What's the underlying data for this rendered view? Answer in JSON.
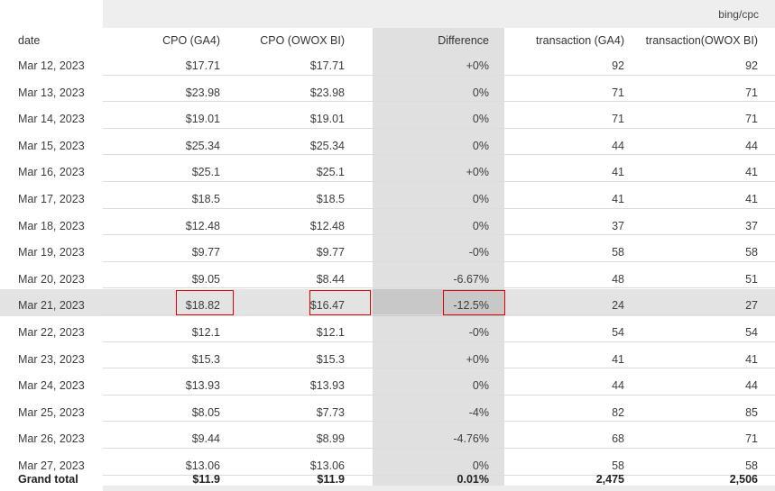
{
  "group_label": "bing/cpc",
  "columns": {
    "date": "date",
    "cpo_ga4": "CPO (GA4)",
    "cpo_owox": "CPO (OWOX BI)",
    "difference": "Difference",
    "trans_ga4": "transaction (GA4)",
    "trans_owox": "transaction(OWOX BI)"
  },
  "rows": [
    {
      "date": "Mar 12, 2023",
      "cpo_ga4": "$17.71",
      "cpo_owox": "$17.71",
      "difference": "+0%",
      "trans_ga4": "92",
      "trans_owox": "92"
    },
    {
      "date": "Mar 13, 2023",
      "cpo_ga4": "$23.98",
      "cpo_owox": "$23.98",
      "difference": "0%",
      "trans_ga4": "71",
      "trans_owox": "71"
    },
    {
      "date": "Mar 14, 2023",
      "cpo_ga4": "$19.01",
      "cpo_owox": "$19.01",
      "difference": "0%",
      "trans_ga4": "71",
      "trans_owox": "71"
    },
    {
      "date": "Mar 15, 2023",
      "cpo_ga4": "$25.34",
      "cpo_owox": "$25.34",
      "difference": "0%",
      "trans_ga4": "44",
      "trans_owox": "44"
    },
    {
      "date": "Mar 16, 2023",
      "cpo_ga4": "$25.1",
      "cpo_owox": "$25.1",
      "difference": "+0%",
      "trans_ga4": "41",
      "trans_owox": "41"
    },
    {
      "date": "Mar 17, 2023",
      "cpo_ga4": "$18.5",
      "cpo_owox": "$18.5",
      "difference": "0%",
      "trans_ga4": "41",
      "trans_owox": "41"
    },
    {
      "date": "Mar 18, 2023",
      "cpo_ga4": "$12.48",
      "cpo_owox": "$12.48",
      "difference": "0%",
      "trans_ga4": "37",
      "trans_owox": "37"
    },
    {
      "date": "Mar 19, 2023",
      "cpo_ga4": "$9.77",
      "cpo_owox": "$9.77",
      "difference": "-0%",
      "trans_ga4": "58",
      "trans_owox": "58"
    },
    {
      "date": "Mar 20, 2023",
      "cpo_ga4": "$9.05",
      "cpo_owox": "$8.44",
      "difference": "-6.67%",
      "trans_ga4": "48",
      "trans_owox": "51"
    },
    {
      "date": "Mar 21, 2023",
      "cpo_ga4": "$18.82",
      "cpo_owox": "$16.47",
      "difference": "-12.5%",
      "trans_ga4": "24",
      "trans_owox": "27",
      "highlighted": true
    },
    {
      "date": "Mar 22, 2023",
      "cpo_ga4": "$12.1",
      "cpo_owox": "$12.1",
      "difference": "-0%",
      "trans_ga4": "54",
      "trans_owox": "54"
    },
    {
      "date": "Mar 23, 2023",
      "cpo_ga4": "$15.3",
      "cpo_owox": "$15.3",
      "difference": "+0%",
      "trans_ga4": "41",
      "trans_owox": "41"
    },
    {
      "date": "Mar 24, 2023",
      "cpo_ga4": "$13.93",
      "cpo_owox": "$13.93",
      "difference": "0%",
      "trans_ga4": "44",
      "trans_owox": "44"
    },
    {
      "date": "Mar 25, 2023",
      "cpo_ga4": "$8.05",
      "cpo_owox": "$7.73",
      "difference": "-4%",
      "trans_ga4": "82",
      "trans_owox": "85"
    },
    {
      "date": "Mar 26, 2023",
      "cpo_ga4": "$9.44",
      "cpo_owox": "$8.99",
      "difference": "-4.76%",
      "trans_ga4": "68",
      "trans_owox": "71"
    },
    {
      "date": "Mar 27, 2023",
      "cpo_ga4": "$13.06",
      "cpo_owox": "$13.06",
      "difference": "0%",
      "trans_ga4": "58",
      "trans_owox": "58"
    }
  ],
  "grand_total": {
    "label": "Grand total",
    "cpo_ga4": "$11.9",
    "cpo_owox": "$11.9",
    "difference": "0.01%",
    "trans_ga4": "2,475",
    "trans_owox": "2,506"
  },
  "colors": {
    "highlight_border": "#e00000",
    "difference_column_bg": "#e0e0e0",
    "header_band_bg": "#eeeeee"
  }
}
